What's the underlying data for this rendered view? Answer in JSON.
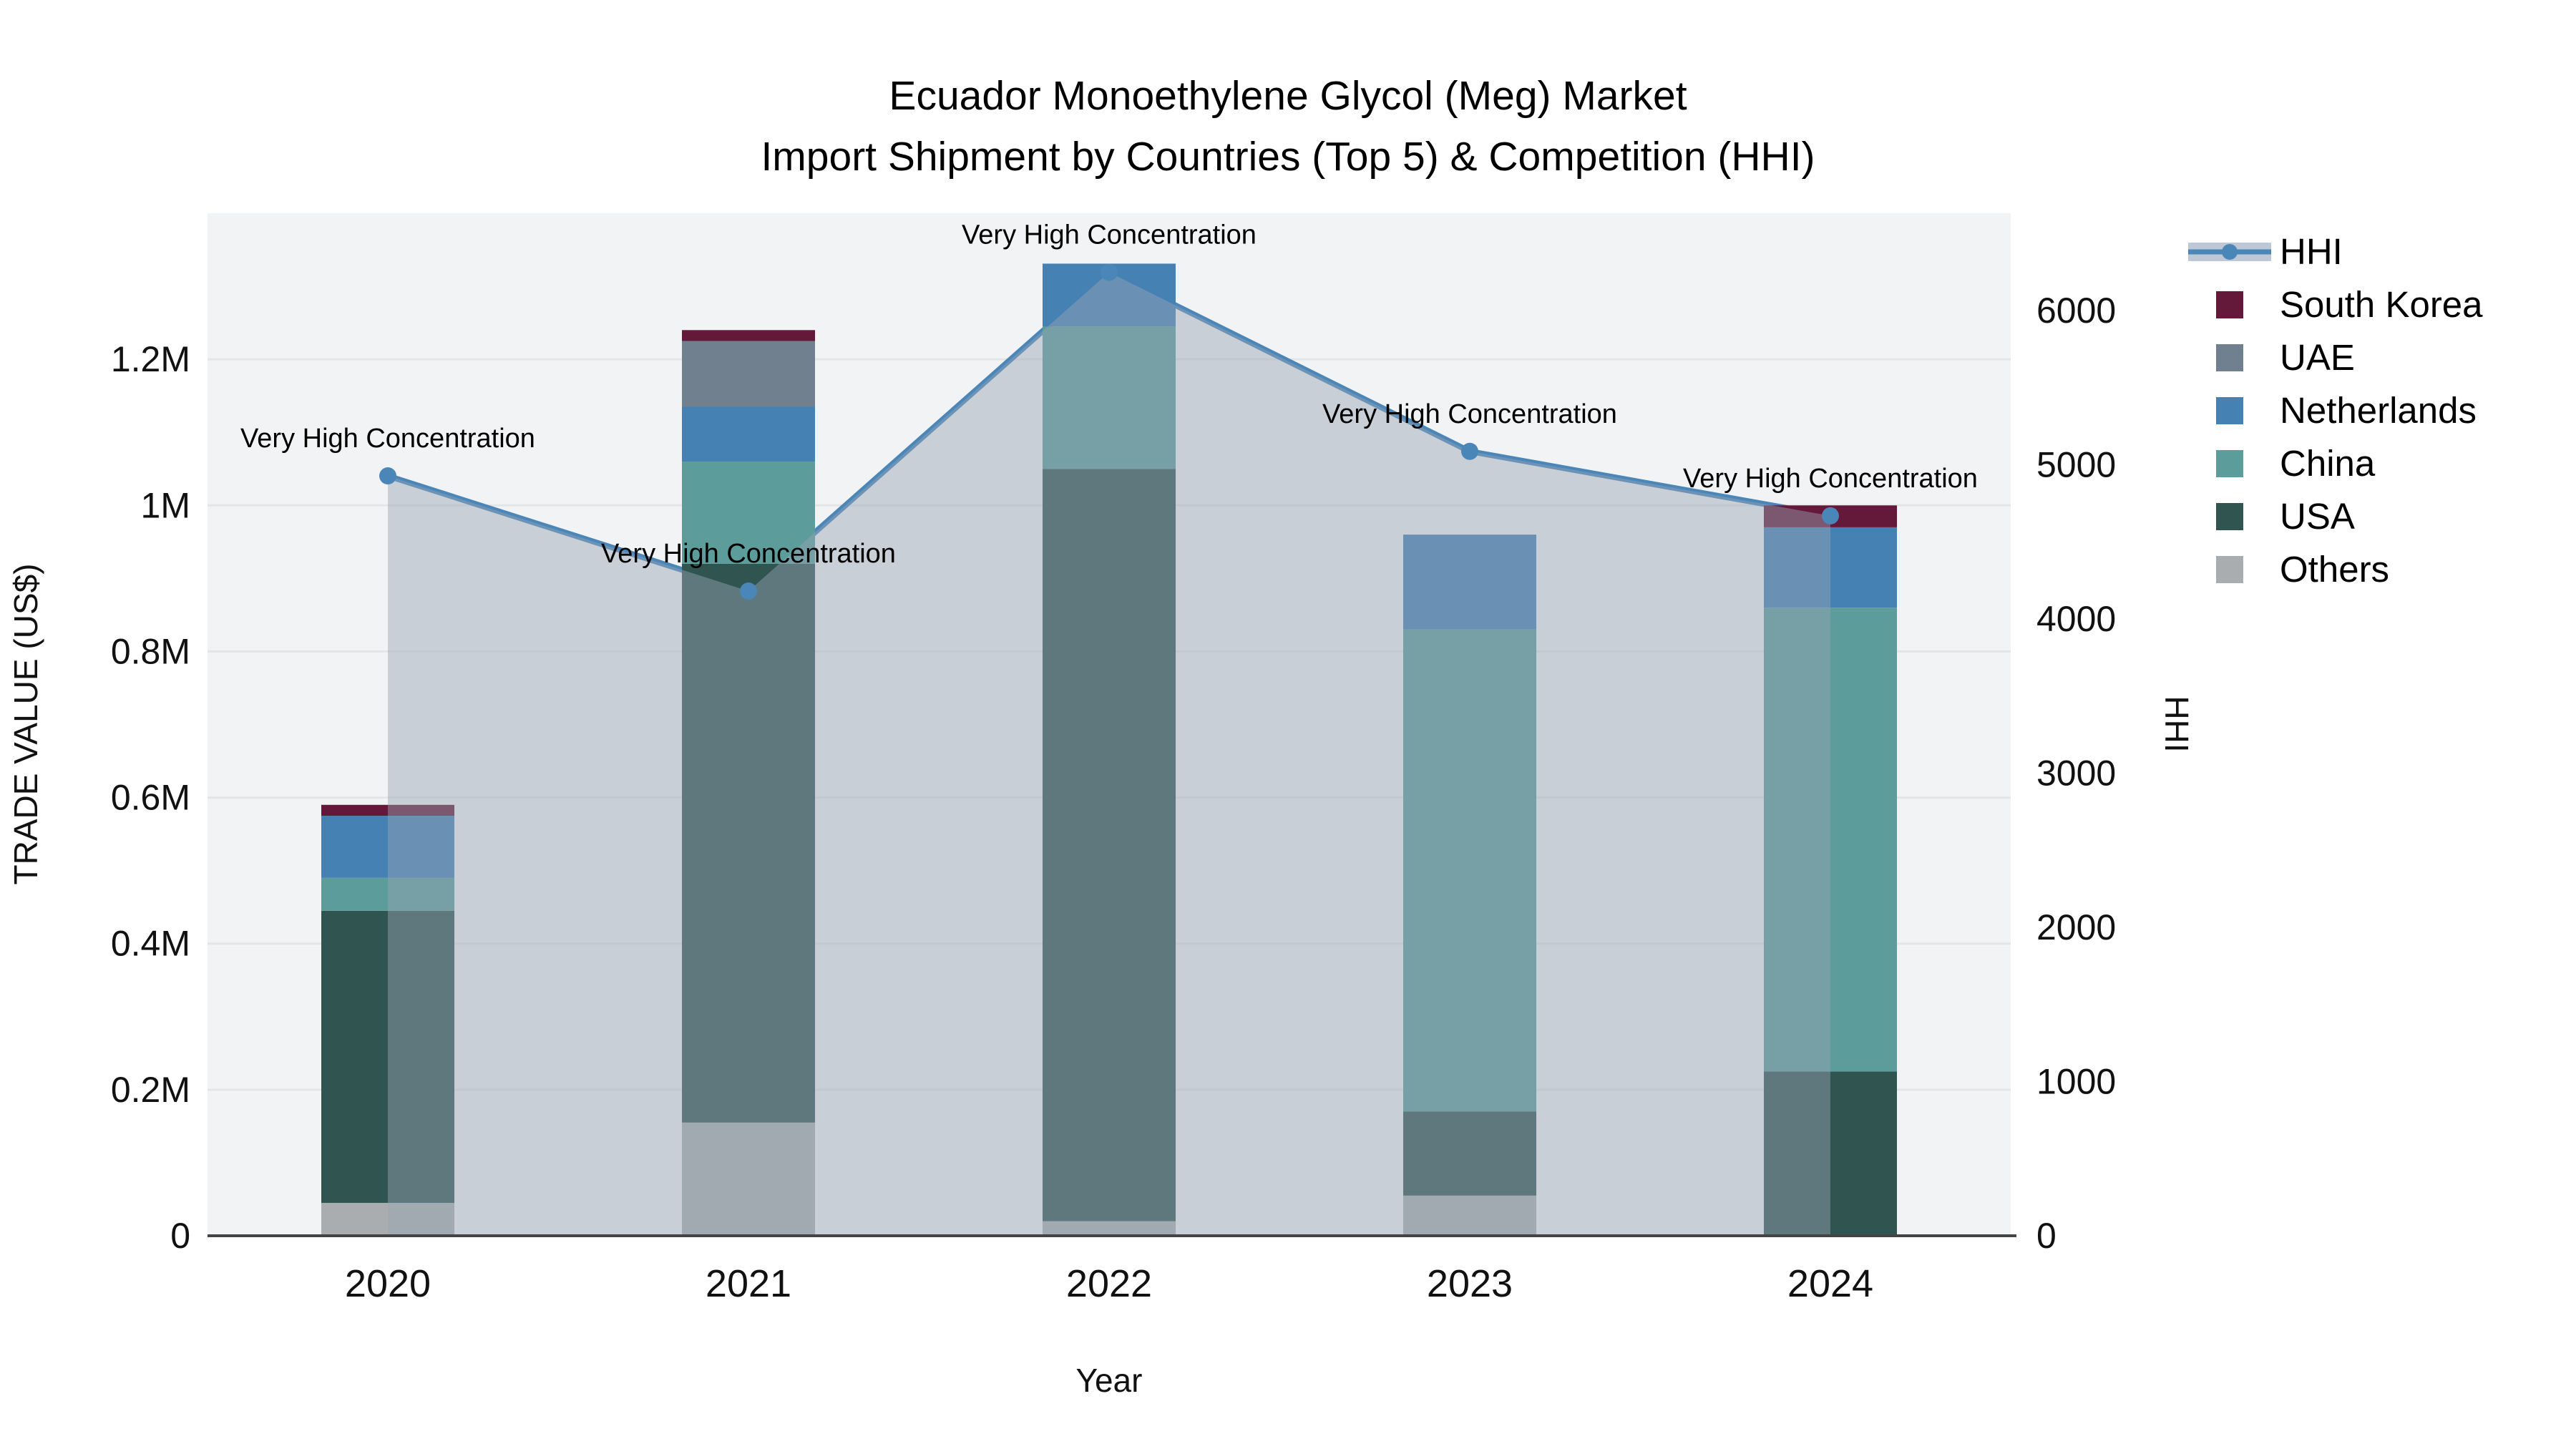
{
  "chart_data": {
    "type": "bar",
    "subtype": "stacked-bars-with-line-overlay",
    "title_line1": "Ecuador Monoethylene Glycol (Meg) Market",
    "title_line2": "Import Shipment by Countries (Top 5) & Competition (HHI)",
    "xlabel": "Year",
    "categories": [
      "2020",
      "2021",
      "2022",
      "2023",
      "2024"
    ],
    "series": [
      {
        "name": "Others",
        "color": "#a9adaf",
        "values": [
          45000,
          155000,
          20000,
          55000,
          0
        ]
      },
      {
        "name": "USA",
        "color": "#305551",
        "values": [
          400000,
          765000,
          1030000,
          115000,
          225000
        ]
      },
      {
        "name": "China",
        "color": "#5c9c9b",
        "values": [
          45000,
          140000,
          195000,
          660000,
          635000
        ]
      },
      {
        "name": "Netherlands",
        "color": "#4681b3",
        "values": [
          85000,
          75000,
          86000,
          130000,
          110000
        ]
      },
      {
        "name": "UAE",
        "color": "#71808f",
        "values": [
          0,
          90000,
          0,
          0,
          0
        ]
      },
      {
        "name": "South Korea",
        "color": "#64193a",
        "values": [
          15000,
          15000,
          0,
          0,
          30000
        ]
      }
    ],
    "bar_totals": [
      590000,
      1240000,
      1331000,
      960000,
      1000000
    ],
    "hhi": {
      "name": "HHI",
      "values": [
        4927,
        4180,
        6247,
        5086,
        4668
      ],
      "line_color": "#4a86b8",
      "area_color": "rgba(151,163,180,0.45)",
      "legend_band_color": "#bdc7d5"
    },
    "annotations": [
      "Very High Concentration",
      "Very High Concentration",
      "Very High Concentration",
      "Very High Concentration",
      "Very High Concentration"
    ],
    "left_axis": {
      "label": "TRADE VALUE (US$)",
      "ticks": [
        "0",
        "0.2M",
        "0.4M",
        "0.6M",
        "0.8M",
        "1M",
        "1.2M"
      ],
      "tick_values": [
        0,
        200000,
        400000,
        600000,
        800000,
        1000000,
        1200000
      ],
      "max": 1400000
    },
    "right_axis": {
      "label": "HHI",
      "ticks": [
        "0",
        "1000",
        "2000",
        "3000",
        "4000",
        "5000",
        "6000"
      ],
      "tick_values": [
        0,
        1000,
        2000,
        3000,
        4000,
        5000,
        6000
      ],
      "max": 6630
    },
    "legend": [
      {
        "label": "HHI",
        "type": "line"
      },
      {
        "label": "South Korea",
        "type": "swatch"
      },
      {
        "label": "UAE",
        "type": "swatch"
      },
      {
        "label": "Netherlands",
        "type": "swatch"
      },
      {
        "label": "China",
        "type": "swatch"
      },
      {
        "label": "USA",
        "type": "swatch"
      },
      {
        "label": "Others",
        "type": "swatch"
      }
    ],
    "colors": {
      "plot_bg": "#f2f3f4",
      "grid": "#e4e6e6",
      "axis_line": "#444444"
    }
  }
}
